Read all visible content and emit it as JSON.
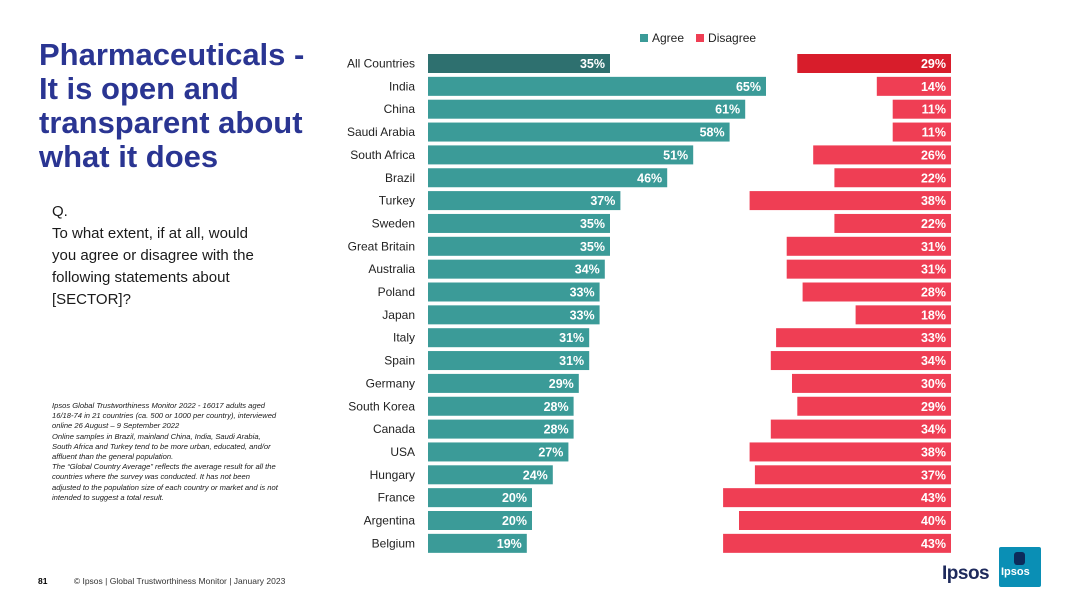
{
  "title": "Pharmaceuticals - It is open and transparent about what it does",
  "question": [
    "Q.",
    "To what extent, if at all, would",
    "you agree or disagree with the",
    "following statements about",
    "[SECTOR]?"
  ],
  "notes": [
    "Ipsos Global Trustworthiness Monitor 2022 - 16017 adults aged",
    "16/18-74 in 21 countries (ca. 500 or 1000 per country), interviewed",
    "online 26 August – 9 September 2022",
    "Online samples in Brazil, mainland China, India, Saudi Arabia,",
    "South Africa and Turkey tend to be more urban, educated, and/or",
    "affluent than the general population.",
    "The “Global Country Average” reflects the average result for all the",
    "countries where the survey was conducted. It has not been",
    "adjusted to the population size of each country or market and is not",
    "intended to suggest a total result."
  ],
  "footer": {
    "page": "81",
    "text": "© Ipsos | Global Trustworthiness Monitor | January 2023"
  },
  "logo": {
    "text": "Ipsos",
    "icon_text": "Ipsos"
  },
  "legend": {
    "agree": "Agree",
    "disagree": "Disagree"
  },
  "colors": {
    "agree": "#3b9b98",
    "agree_highlight": "#2e706f",
    "disagree": "#ef3e54",
    "disagree_highlight": "#d81d2b"
  },
  "chart_data": {
    "type": "bar",
    "title": "Pharmaceuticals - It is open and transparent about what it does",
    "categories": [
      "All Countries",
      "India",
      "China",
      "Saudi Arabia",
      "South Africa",
      "Brazil",
      "Turkey",
      "Sweden",
      "Great Britain",
      "Australia",
      "Poland",
      "Japan",
      "Italy",
      "Spain",
      "Germany",
      "South Korea",
      "Canada",
      "USA",
      "Hungary",
      "France",
      "Argentina",
      "Belgium"
    ],
    "series": [
      {
        "name": "Agree",
        "values": [
          35,
          65,
          61,
          58,
          51,
          46,
          37,
          35,
          35,
          34,
          33,
          33,
          31,
          31,
          29,
          28,
          28,
          27,
          24,
          20,
          20,
          19
        ]
      },
      {
        "name": "Disagree",
        "values": [
          29,
          14,
          11,
          11,
          26,
          22,
          38,
          22,
          31,
          31,
          28,
          18,
          33,
          34,
          30,
          29,
          34,
          38,
          37,
          43,
          40,
          43
        ]
      }
    ],
    "value_suffix": "%",
    "highlight_category": "All Countries"
  }
}
